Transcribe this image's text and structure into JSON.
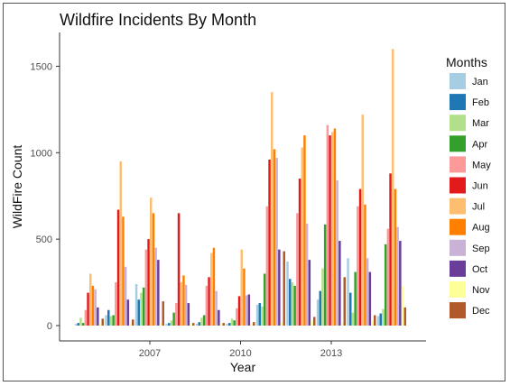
{
  "chart_data": {
    "type": "bar",
    "title": "Wildfire Incidents By Month",
    "xlabel": "Year",
    "ylabel": "WildFire Count",
    "x_ticks": [
      "2007",
      "2010",
      "2013"
    ],
    "y_ticks": [
      "0",
      "500",
      "1000",
      "1500"
    ],
    "ylim": [
      0,
      1650
    ],
    "grid": false,
    "legend": {
      "title": "Months",
      "position": "right"
    },
    "categories": [
      "2005",
      "2006",
      "2007",
      "2008",
      "2009",
      "2010",
      "2011",
      "2012",
      "2013",
      "2014",
      "2015"
    ],
    "series": [
      {
        "name": "Jan",
        "color": "#A6CEE3",
        "values": [
          10,
          60,
          240,
          10,
          10,
          10,
          120,
          370,
          150,
          390,
          55
        ]
      },
      {
        "name": "Feb",
        "color": "#1F78B4",
        "values": [
          15,
          90,
          150,
          15,
          20,
          15,
          130,
          270,
          200,
          190,
          70
        ]
      },
      {
        "name": "Mar",
        "color": "#B2DF8A",
        "values": [
          45,
          55,
          190,
          30,
          45,
          40,
          110,
          250,
          330,
          75,
          95
        ]
      },
      {
        "name": "Apr",
        "color": "#33A02C",
        "values": [
          15,
          60,
          220,
          75,
          60,
          30,
          300,
          230,
          585,
          310,
          470
        ]
      },
      {
        "name": "May",
        "color": "#FB9A99",
        "values": [
          90,
          250,
          440,
          130,
          230,
          100,
          690,
          650,
          1160,
          690,
          560
        ]
      },
      {
        "name": "Jun",
        "color": "#E31A1C",
        "values": [
          190,
          670,
          500,
          650,
          280,
          170,
          960,
          850,
          1100,
          790,
          880
        ]
      },
      {
        "name": "Jul",
        "color": "#FDBF6F",
        "values": [
          300,
          950,
          740,
          250,
          420,
          440,
          1350,
          1030,
          1120,
          1220,
          1600
        ]
      },
      {
        "name": "Aug",
        "color": "#FF7F00",
        "values": [
          230,
          630,
          650,
          290,
          450,
          330,
          1020,
          1100,
          1140,
          700,
          790
        ]
      },
      {
        "name": "Sep",
        "color": "#CAB2D6",
        "values": [
          210,
          340,
          450,
          235,
          200,
          175,
          970,
          590,
          840,
          390,
          570
        ]
      },
      {
        "name": "Oct",
        "color": "#6A3D9A",
        "values": [
          105,
          150,
          380,
          130,
          90,
          180,
          440,
          380,
          490,
          310,
          490
        ]
      },
      {
        "name": "Nov",
        "color": "#FFFF99",
        "values": [
          10,
          10,
          15,
          10,
          10,
          10,
          20,
          30,
          10,
          30,
          230
        ]
      },
      {
        "name": "Dec",
        "color": "#B15928",
        "values": [
          40,
          35,
          140,
          15,
          15,
          20,
          430,
          50,
          280,
          60,
          105
        ]
      }
    ]
  }
}
